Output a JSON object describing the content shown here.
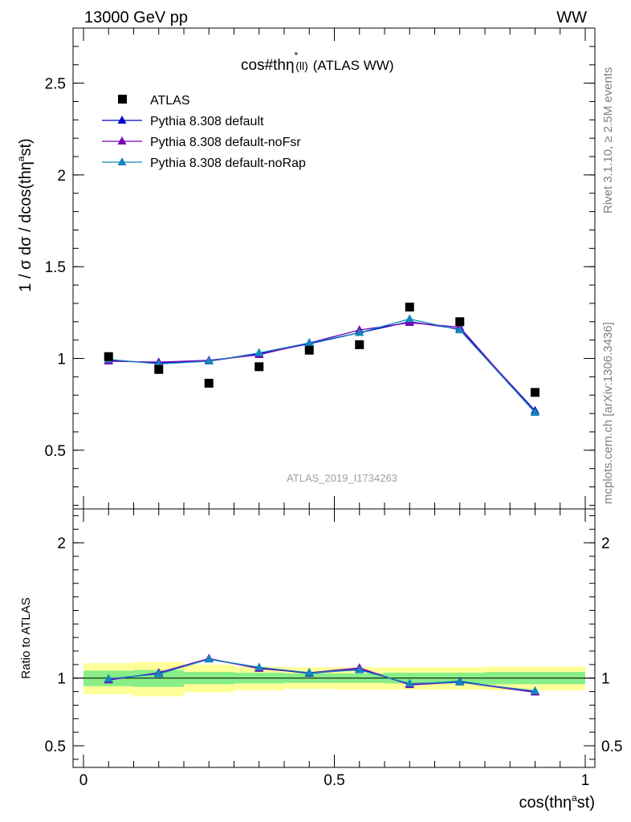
{
  "header": {
    "energy_label": "13000 GeV pp",
    "process_label": "WW"
  },
  "side_labels": {
    "rivet": "Rivet 3.1.10, ≥ 2.5M events",
    "mcplots": "mcplots.cern.ch [arXiv:1306.3436]"
  },
  "chart_data": [
    {
      "type": "line",
      "title": "cos#thη* (ll) (ATLAS WW)",
      "title_parts": {
        "main": "cos#thη",
        "sup": "*",
        "sub": "(ll)",
        "rest": "(ATLAS WW)"
      },
      "ylabel": "1 / σ dσ / dcos(thηast)",
      "ylabel_parts": {
        "prefix": "1 / σ dσ / dcos(thη",
        "sup": "a",
        "suffix": "st)"
      },
      "watermark": "ATLAS_2019_I1734263",
      "xlim": [
        0,
        1
      ],
      "ylim": [
        0.18,
        2.8
      ],
      "y_ticks": [
        0.5,
        1,
        1.5,
        2,
        2.5
      ],
      "y_tick_labels": [
        "0.5",
        "1",
        "1.5",
        "2",
        "2.5"
      ],
      "x": [
        0.05,
        0.15,
        0.25,
        0.35,
        0.45,
        0.55,
        0.65,
        0.75,
        0.9
      ],
      "bin_edges": [
        0,
        0.1,
        0.2,
        0.3,
        0.4,
        0.5,
        0.6,
        0.7,
        0.8,
        1.0
      ],
      "data_series": {
        "name": "ATLAS",
        "marker": "square",
        "color": "#000000",
        "values": [
          1.01,
          0.94,
          0.865,
          0.955,
          1.045,
          1.075,
          1.28,
          1.2,
          0.815
        ]
      },
      "series": [
        {
          "name": "Pythia 8.308 default",
          "color": "#0000cc",
          "marker": "triangle",
          "values": [
            0.99,
            0.975,
            0.985,
            1.025,
            1.08,
            1.14,
            1.2,
            1.16,
            0.715
          ]
        },
        {
          "name": "Pythia 8.308 default-noFsr",
          "color": "#7700bb",
          "marker": "triangle",
          "values": [
            0.985,
            0.98,
            0.99,
            1.02,
            1.085,
            1.155,
            1.195,
            1.17,
            0.705
          ]
        },
        {
          "name": "Pythia 8.308 default-noRap",
          "color": "#1188bb",
          "marker": "triangle",
          "values": [
            0.995,
            0.97,
            0.985,
            1.03,
            1.085,
            1.14,
            1.215,
            1.155,
            0.705
          ]
        }
      ],
      "legend": "top-left"
    },
    {
      "type": "line",
      "ylabel": "Ratio to ATLAS",
      "xlabel": "cos(thηast)",
      "xlabel_parts": {
        "prefix": "cos(thη",
        "sup": "a",
        "suffix": "st)"
      },
      "xlim": [
        0,
        1
      ],
      "ylim": [
        0.34,
        2.25
      ],
      "x_ticks": [
        0,
        0.5,
        1
      ],
      "x_tick_labels": [
        "0",
        "0.5",
        "1"
      ],
      "y_ticks": [
        0.5,
        1,
        2
      ],
      "y_tick_labels": [
        "0.5",
        "1",
        "2"
      ],
      "reference_line": 1,
      "x": [
        0.05,
        0.15,
        0.25,
        0.35,
        0.45,
        0.55,
        0.65,
        0.75,
        0.9
      ],
      "bin_edges": [
        0,
        0.1,
        0.2,
        0.3,
        0.4,
        0.5,
        0.6,
        0.7,
        0.8,
        1.0
      ],
      "band_green": [
        [
          0.94,
          1.055
        ],
        [
          0.935,
          1.06
        ],
        [
          0.955,
          1.045
        ],
        [
          0.96,
          1.04
        ],
        [
          0.965,
          1.035
        ],
        [
          0.965,
          1.035
        ],
        [
          0.96,
          1.04
        ],
        [
          0.96,
          1.04
        ],
        [
          0.955,
          1.045
        ]
      ],
      "band_yellow": [
        [
          0.88,
          1.11
        ],
        [
          0.865,
          1.12
        ],
        [
          0.895,
          1.1
        ],
        [
          0.91,
          1.085
        ],
        [
          0.92,
          1.08
        ],
        [
          0.915,
          1.08
        ],
        [
          0.915,
          1.08
        ],
        [
          0.915,
          1.08
        ],
        [
          0.91,
          1.085
        ]
      ],
      "band_colors": {
        "green": "#88ee88",
        "yellow": "#ffff99"
      },
      "series": [
        {
          "name": "Pythia 8.308 default",
          "color": "#0000cc",
          "values": [
            0.99,
            1.035,
            1.14,
            1.075,
            1.035,
            1.065,
            0.955,
            0.975,
            0.9
          ]
        },
        {
          "name": "Pythia 8.308 default-noFsr",
          "color": "#7700bb",
          "values": [
            0.985,
            1.04,
            1.145,
            1.07,
            1.04,
            1.075,
            0.95,
            0.97,
            0.895
          ]
        },
        {
          "name": "Pythia 8.308 default-noRap",
          "color": "#1188bb",
          "values": [
            0.995,
            1.03,
            1.14,
            1.08,
            1.04,
            1.06,
            0.96,
            0.97,
            0.905
          ]
        }
      ]
    }
  ]
}
